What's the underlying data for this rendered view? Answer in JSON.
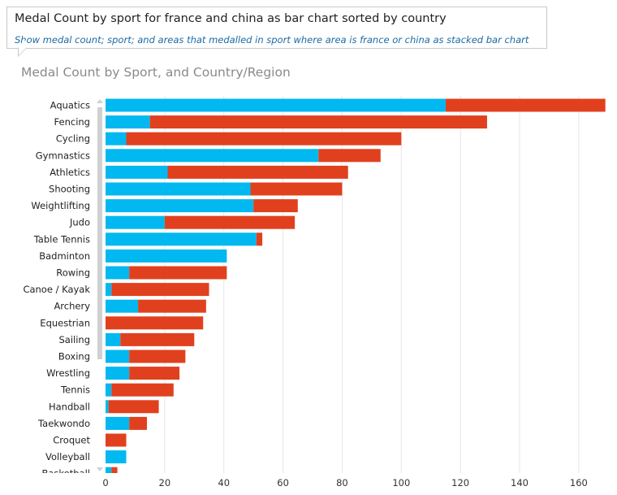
{
  "qa": {
    "query": "Medal Count by sport for france and china as bar chart sorted by country",
    "restatement": "Show medal count; sport; and areas that medalled in sport where area is france or china as stacked bar chart"
  },
  "colors": {
    "series_1": "#01b8f0",
    "series_2": "#e1401e",
    "grid": "#e6e6e6",
    "scrollbar": "#d0d0d0"
  },
  "chart_data": {
    "type": "bar",
    "orientation": "horizontal",
    "stacked": true,
    "title": "Medal Count by Sport, and Country/Region",
    "categories": [
      "Aquatics",
      "Fencing",
      "Cycling",
      "Gymnastics",
      "Athletics",
      "Shooting",
      "Weightlifting",
      "Judo",
      "Table Tennis",
      "Badminton",
      "Rowing",
      "Canoe / Kayak",
      "Archery",
      "Equestrian",
      "Sailing",
      "Boxing",
      "Wrestling",
      "Tennis",
      "Handball",
      "Taekwondo",
      "Croquet",
      "Volleyball",
      "Basketball"
    ],
    "series": [
      {
        "values": [
          115,
          15,
          7,
          72,
          21,
          49,
          50,
          20,
          51,
          41,
          8,
          2,
          11,
          0,
          5,
          8,
          8,
          2,
          1,
          8,
          0,
          7,
          2
        ]
      },
      {
        "values": [
          54,
          114,
          93,
          21,
          61,
          31,
          15,
          44,
          2,
          0,
          33,
          33,
          23,
          33,
          25,
          19,
          17,
          21,
          17,
          6,
          7,
          0,
          2
        ]
      }
    ],
    "xlim": [
      0,
      170
    ],
    "xticks": [
      "0",
      "20",
      "40",
      "60",
      "80",
      "100",
      "120",
      "140",
      "160"
    ],
    "grid": true,
    "legend": "none"
  }
}
